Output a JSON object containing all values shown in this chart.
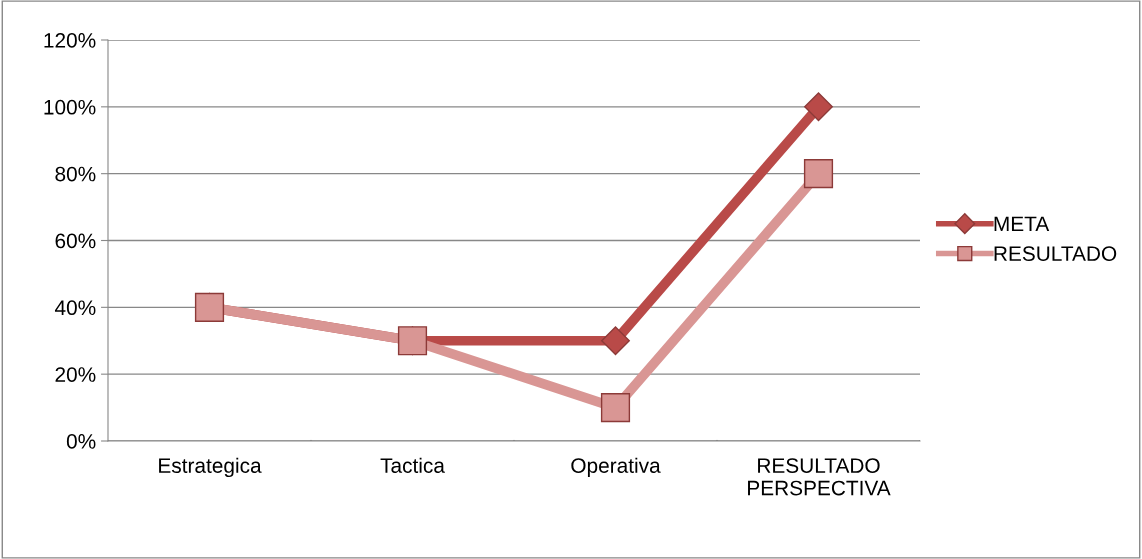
{
  "chart_data": {
    "type": "line",
    "categories": [
      "Estrategica",
      "Tactica",
      "Operativa",
      "RESULTADO\nPERSPECTIVA"
    ],
    "series": [
      {
        "name": "META",
        "color": "#b94a48",
        "marker": "diamond",
        "values": [
          40,
          30,
          30,
          100
        ]
      },
      {
        "name": "RESULTADO",
        "color": "#d99694",
        "marker": "square",
        "values": [
          40,
          30,
          10,
          80
        ]
      }
    ],
    "ylim": [
      0,
      120
    ],
    "yticks": [
      {
        "value": 0,
        "label": "0%"
      },
      {
        "value": 20,
        "label": "20%"
      },
      {
        "value": 40,
        "label": "40%"
      },
      {
        "value": 60,
        "label": "60%"
      },
      {
        "value": 80,
        "label": "80%"
      },
      {
        "value": 100,
        "label": "100%"
      },
      {
        "value": 120,
        "label": "120%"
      }
    ],
    "grid": "y",
    "legend": "right",
    "line_style": "solid"
  }
}
